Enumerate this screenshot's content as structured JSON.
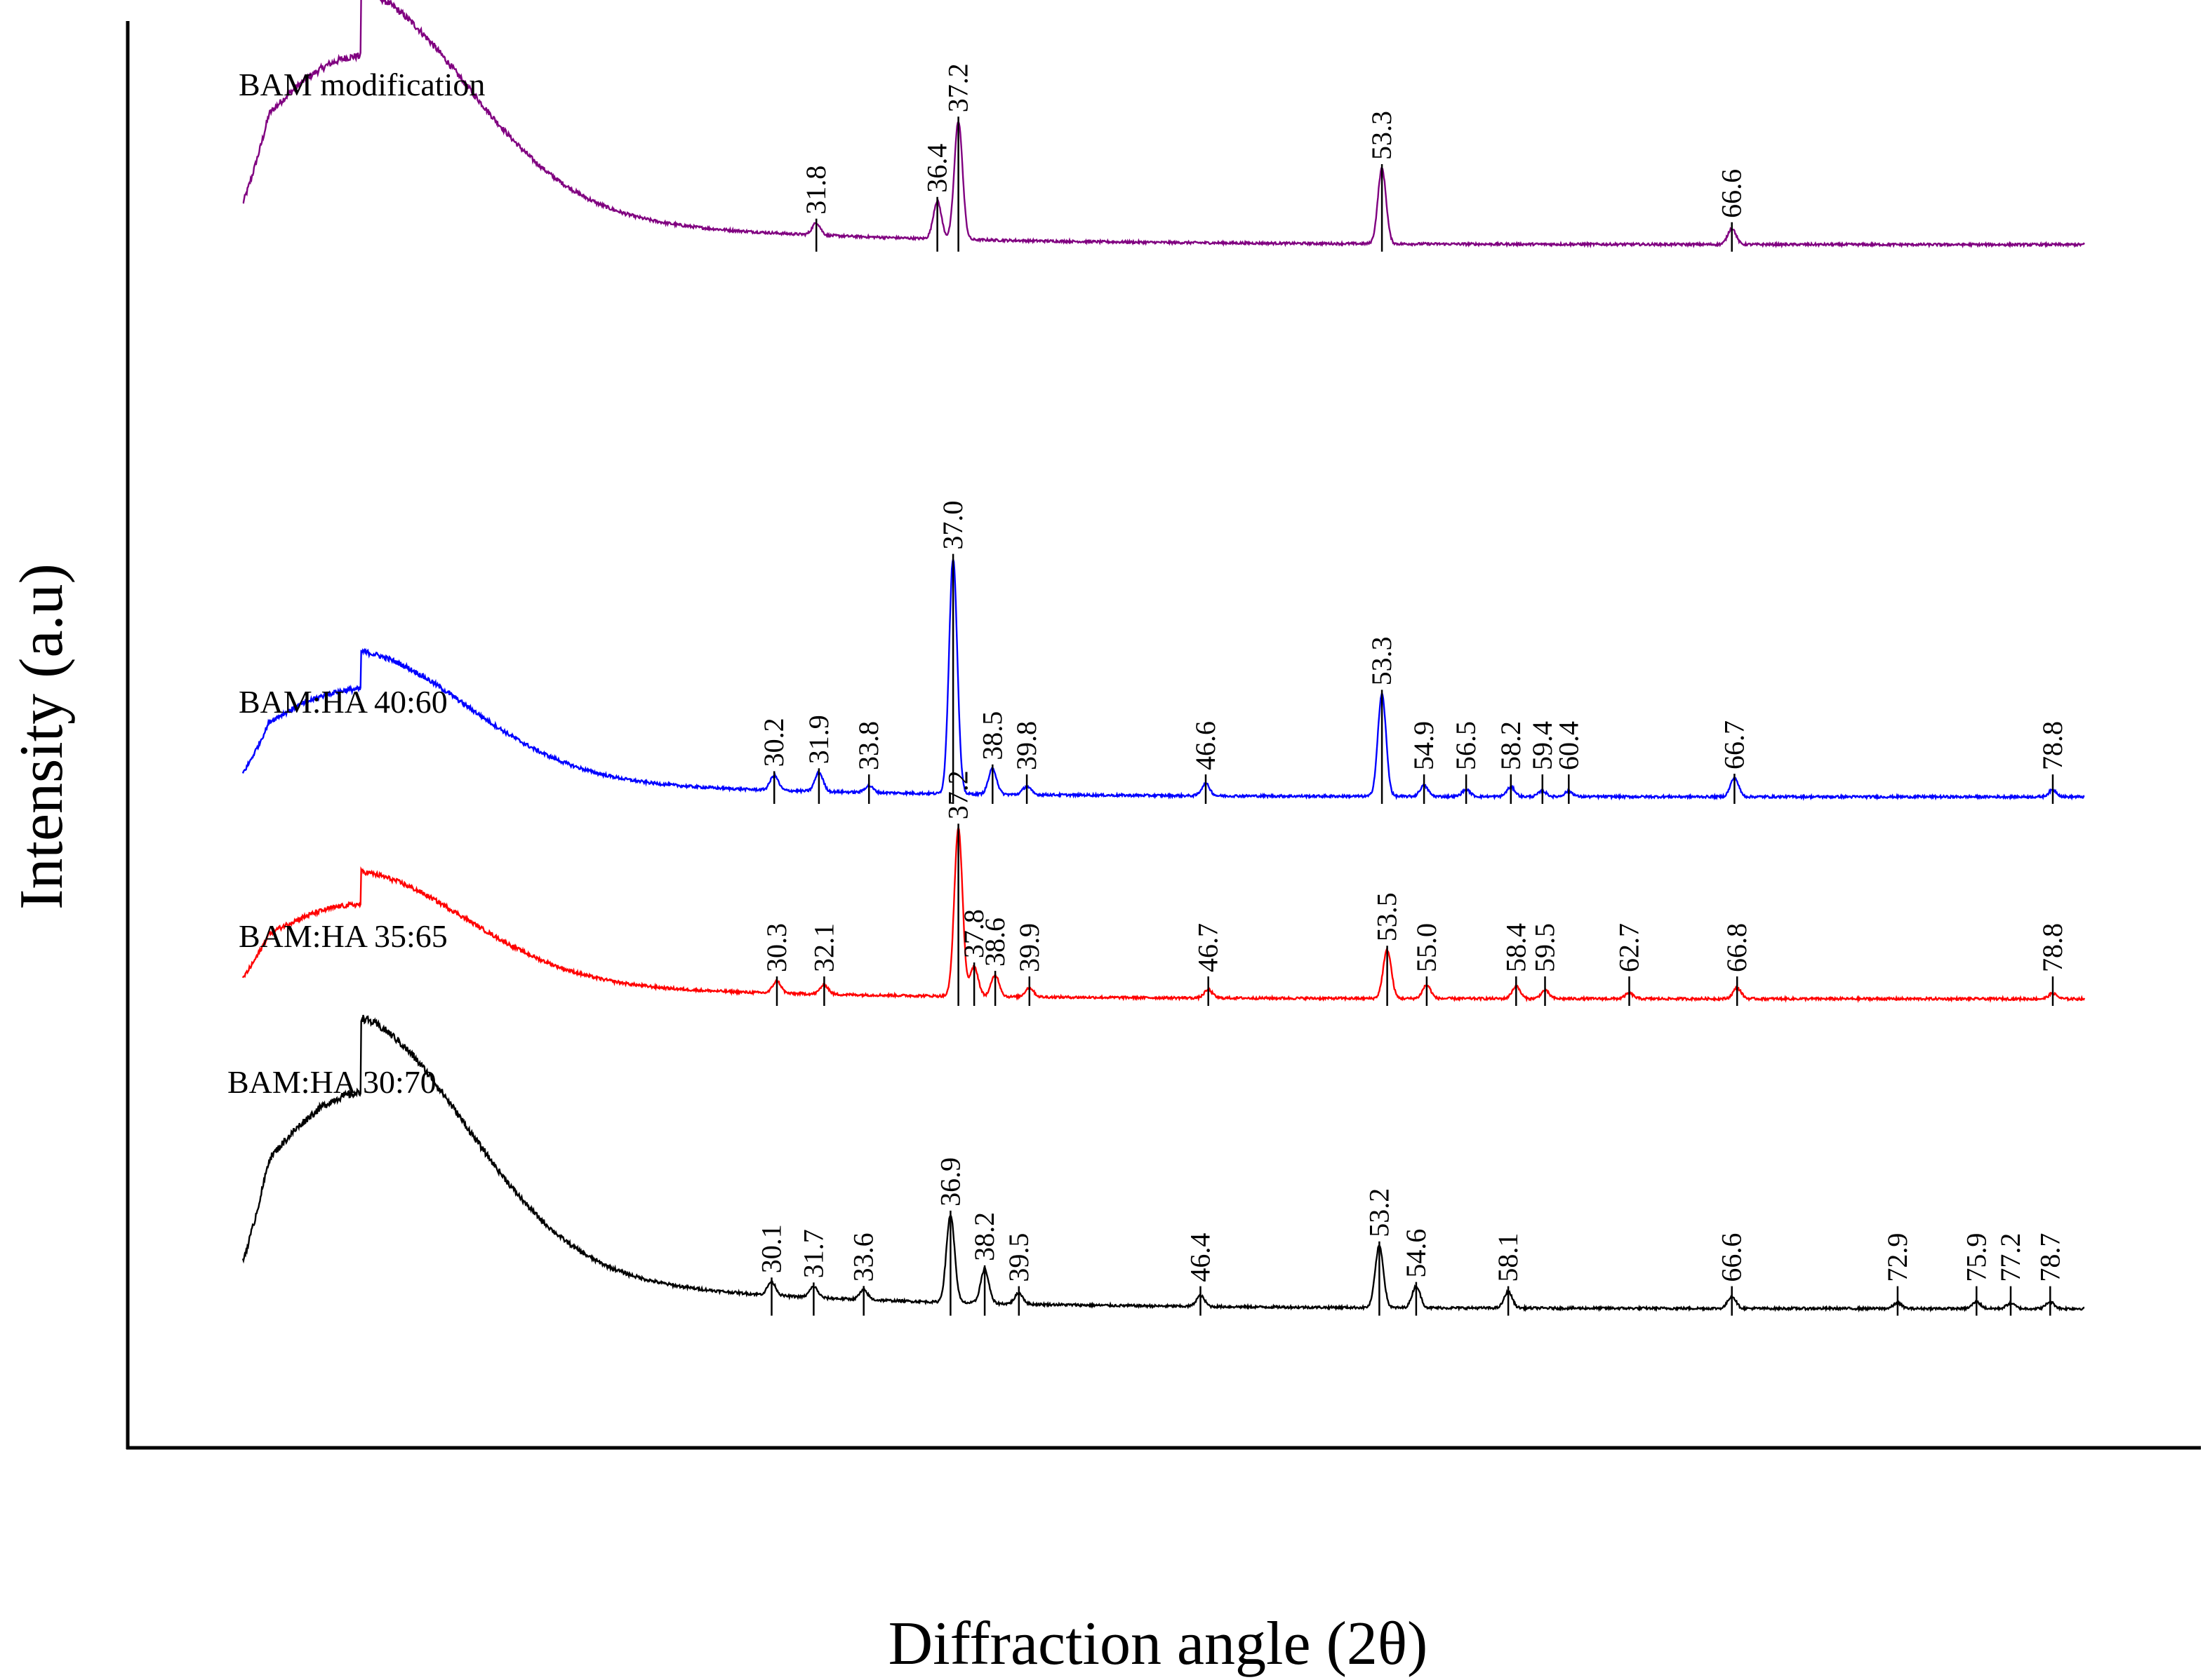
{
  "chart_data": {
    "type": "line",
    "title": "",
    "xlabel": "Diffraction angle (2θ)",
    "ylabel": "Intensity (a.u)",
    "xlim": [
      10,
      80
    ],
    "ylim": [
      0,
      100
    ],
    "grid": false,
    "legend": "inline-left",
    "series": [
      {
        "name": "BAM modification",
        "color": "#800080",
        "baseline": 86,
        "hump_height": 14,
        "peaks": [
          {
            "x": 31.8,
            "h": 0.9,
            "label": "31.8"
          },
          {
            "x": 36.4,
            "h": 2.8,
            "label": "36.4"
          },
          {
            "x": 37.2,
            "h": 8.8,
            "label": "37.2"
          },
          {
            "x": 53.3,
            "h": 5.6,
            "label": "53.3"
          },
          {
            "x": 66.6,
            "h": 1.2,
            "label": "66.6"
          }
        ]
      },
      {
        "name": "BAM:HA 40:60",
        "color": "#0000ff",
        "baseline": 45,
        "hump_height": 8,
        "peaks": [
          {
            "x": 30.2,
            "h": 1.1,
            "label": "30.2"
          },
          {
            "x": 31.9,
            "h": 1.4,
            "label": "31.9"
          },
          {
            "x": 33.8,
            "h": 0.5,
            "label": "33.8"
          },
          {
            "x": 37.0,
            "h": 17.5,
            "label": "37.0"
          },
          {
            "x": 38.5,
            "h": 1.9,
            "label": "38.5"
          },
          {
            "x": 39.8,
            "h": 0.6,
            "label": "39.8"
          },
          {
            "x": 46.6,
            "h": 0.9,
            "label": "46.6"
          },
          {
            "x": 53.3,
            "h": 7.6,
            "label": "53.3"
          },
          {
            "x": 54.9,
            "h": 0.8,
            "label": "54.9"
          },
          {
            "x": 56.5,
            "h": 0.5,
            "label": "56.5"
          },
          {
            "x": 58.2,
            "h": 0.7,
            "label": "58.2"
          },
          {
            "x": 59.4,
            "h": 0.4,
            "label": "59.4"
          },
          {
            "x": 60.4,
            "h": 0.4,
            "label": "60.4"
          },
          {
            "x": 66.7,
            "h": 1.4,
            "label": "66.7"
          },
          {
            "x": 78.8,
            "h": 0.5,
            "label": "78.8"
          }
        ]
      },
      {
        "name": "BAM:HA 35:65",
        "color": "#ff0000",
        "baseline": 30,
        "hump_height": 7,
        "peaks": [
          {
            "x": 30.3,
            "h": 0.9,
            "label": "30.3"
          },
          {
            "x": 32.1,
            "h": 0.7,
            "label": "32.1"
          },
          {
            "x": 37.2,
            "h": 12.5,
            "label": "37.2"
          },
          {
            "x": 37.8,
            "h": 2.2,
            "label": "37.8"
          },
          {
            "x": 38.6,
            "h": 1.6,
            "label": "38.6"
          },
          {
            "x": 39.9,
            "h": 0.7,
            "label": "39.9"
          },
          {
            "x": 46.7,
            "h": 0.6,
            "label": "46.7"
          },
          {
            "x": 53.5,
            "h": 3.6,
            "label": "53.5"
          },
          {
            "x": 55.0,
            "h": 1.0,
            "label": "55.0"
          },
          {
            "x": 58.4,
            "h": 0.9,
            "label": "58.4"
          },
          {
            "x": 59.5,
            "h": 0.6,
            "label": "59.5"
          },
          {
            "x": 62.7,
            "h": 0.4,
            "label": "62.7"
          },
          {
            "x": 66.8,
            "h": 0.8,
            "label": "66.8"
          },
          {
            "x": 78.8,
            "h": 0.4,
            "label": "78.8"
          }
        ]
      },
      {
        "name": "BAM:HA 30:70",
        "color": "#000000",
        "baseline": 7,
        "hump_height": 16,
        "peaks": [
          {
            "x": 30.1,
            "h": 1.0,
            "label": "30.1"
          },
          {
            "x": 31.7,
            "h": 0.8,
            "label": "31.7"
          },
          {
            "x": 33.6,
            "h": 0.7,
            "label": "33.6"
          },
          {
            "x": 36.9,
            "h": 6.5,
            "label": "36.9"
          },
          {
            "x": 38.2,
            "h": 2.5,
            "label": "38.2"
          },
          {
            "x": 39.5,
            "h": 0.8,
            "label": "39.5"
          },
          {
            "x": 46.4,
            "h": 0.8,
            "label": "46.4"
          },
          {
            "x": 53.2,
            "h": 4.6,
            "label": "53.2"
          },
          {
            "x": 54.6,
            "h": 1.6,
            "label": "54.6"
          },
          {
            "x": 58.1,
            "h": 1.2,
            "label": "58.1"
          },
          {
            "x": 66.6,
            "h": 0.9,
            "label": "66.6"
          },
          {
            "x": 72.9,
            "h": 0.4,
            "label": "72.9"
          },
          {
            "x": 75.9,
            "h": 0.5,
            "label": "75.9"
          },
          {
            "x": 77.2,
            "h": 0.4,
            "label": "77.2"
          },
          {
            "x": 78.7,
            "h": 0.5,
            "label": "78.7"
          }
        ]
      }
    ]
  }
}
